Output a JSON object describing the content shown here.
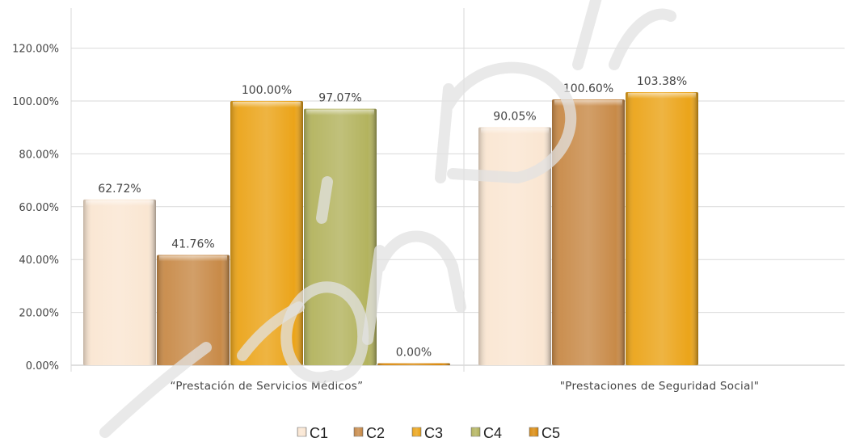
{
  "chart_data": {
    "type": "bar",
    "categories": [
      "“Prestación de Servicios Médicos”",
      "\"Prestaciones de Seguridad Social\""
    ],
    "series": [
      {
        "name": "C1",
        "values": [
          62.72,
          90.05
        ],
        "labels": [
          "62.72%",
          "90.05%"
        ],
        "color": "#fae6d2"
      },
      {
        "name": "C2",
        "values": [
          41.76,
          100.6
        ],
        "labels": [
          "41.76%",
          "100.60%"
        ],
        "color": "#c88a48"
      },
      {
        "name": "C3",
        "values": [
          100.0,
          103.38
        ],
        "labels": [
          "100.00%",
          "103.38%"
        ],
        "color": "#eba419"
      },
      {
        "name": "C4",
        "values": [
          97.07,
          null
        ],
        "labels": [
          "97.07%",
          ""
        ],
        "color": "#b3b35e"
      },
      {
        "name": "C5",
        "values": [
          0.0,
          null
        ],
        "labels": [
          "0.00%",
          ""
        ],
        "color": "#d98a10"
      }
    ],
    "yticks": [
      "0.00%",
      "20.00%",
      "40.00%",
      "60.00%",
      "80.00%",
      "100.00%",
      "120.00%"
    ],
    "ylim": [
      0,
      130
    ],
    "title": "",
    "xlabel": "",
    "ylabel": "",
    "grid": true,
    "legend_position": "bottom"
  }
}
